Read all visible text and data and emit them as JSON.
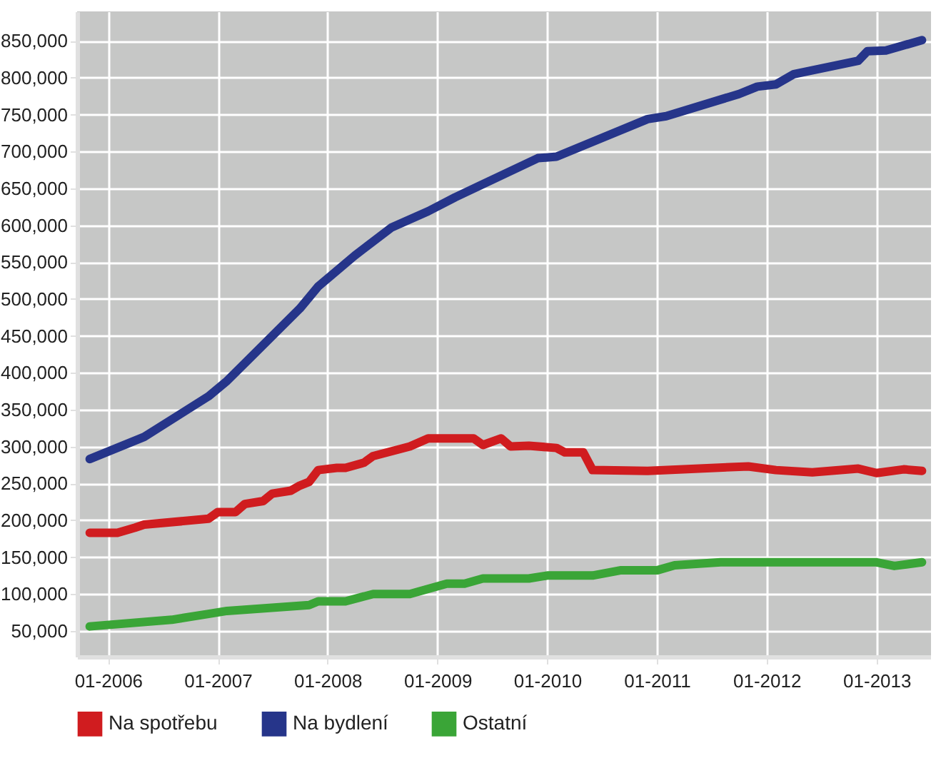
{
  "chart_data": {
    "type": "line",
    "xlim": [
      "2005-09-20",
      "2013-07-01"
    ],
    "xticks": [
      {
        "value": "2006-01",
        "label": "01-2006"
      },
      {
        "value": "2007-01",
        "label": "01-2007"
      },
      {
        "value": "2008-01",
        "label": "01-2008"
      },
      {
        "value": "2009-01",
        "label": "01-2009"
      },
      {
        "value": "2010-01",
        "label": "01-2010"
      },
      {
        "value": "2011-01",
        "label": "01-2011"
      },
      {
        "value": "2012-01",
        "label": "01-2012"
      },
      {
        "value": "2013-01",
        "label": "01-2013"
      }
    ],
    "ylim": [
      15000,
      890000
    ],
    "yticks": [
      {
        "value": 50000,
        "label": "50,000"
      },
      {
        "value": 100000,
        "label": "100,000"
      },
      {
        "value": 150000,
        "label": "150,000"
      },
      {
        "value": 200000,
        "label": "200,000"
      },
      {
        "value": 250000,
        "label": "250,000"
      },
      {
        "value": 300000,
        "label": "300,000"
      },
      {
        "value": 350000,
        "label": "350,000"
      },
      {
        "value": 400000,
        "label": "400,000"
      },
      {
        "value": 450000,
        "label": "450,000"
      },
      {
        "value": 500000,
        "label": "500,000"
      },
      {
        "value": 550000,
        "label": "550,000"
      },
      {
        "value": 600000,
        "label": "600,000"
      },
      {
        "value": 650000,
        "label": "650,000"
      },
      {
        "value": 700000,
        "label": "700,000"
      },
      {
        "value": 750000,
        "label": "750,000"
      },
      {
        "value": 800000,
        "label": "800,000"
      },
      {
        "value": 850000,
        "label": "850,000"
      }
    ],
    "grid": true,
    "legend": "bottom",
    "marker": "none",
    "line_style": "solid",
    "series": [
      {
        "name": "Na spotřebu",
        "color": "#d01c1f",
        "x": [
          "2005-11",
          "2006-02",
          "2006-04",
          "2006-05",
          "2006-12",
          "2007-01",
          "2007-03",
          "2007-04",
          "2007-06",
          "2007-07",
          "2007-09",
          "2007-10",
          "2007-11",
          "2007-12",
          "2008-02",
          "2008-03",
          "2008-05",
          "2008-06",
          "2008-10",
          "2008-12",
          "2009-05",
          "2009-06",
          "2009-08",
          "2009-09",
          "2009-11",
          "2010-02",
          "2010-03",
          "2010-05",
          "2010-06",
          "2010-12",
          "2011-11",
          "2012-02",
          "2012-06",
          "2012-11",
          "2013-01",
          "2013-04",
          "2013-06"
        ],
        "values": [
          183000,
          183000,
          190000,
          194000,
          202000,
          211000,
          211000,
          222000,
          226000,
          236000,
          240000,
          247000,
          252000,
          268000,
          271000,
          271000,
          278000,
          287000,
          300000,
          311000,
          311000,
          302000,
          311000,
          300000,
          301000,
          298000,
          292000,
          292000,
          268000,
          267000,
          273000,
          268000,
          265000,
          270000,
          264000,
          269000,
          267000
        ]
      },
      {
        "name": "Na bydlení",
        "color": "#26358a",
        "x": [
          "2005-11",
          "2006-05",
          "2006-12",
          "2007-02",
          "2007-10",
          "2007-12",
          "2008-04",
          "2008-08",
          "2008-12",
          "2009-03",
          "2009-12",
          "2010-02",
          "2010-12",
          "2011-02",
          "2011-10",
          "2011-12",
          "2012-02",
          "2012-04",
          "2012-11",
          "2012-12",
          "2013-02",
          "2013-06"
        ],
        "values": [
          283000,
          313000,
          368000,
          389000,
          487000,
          517000,
          559000,
          597000,
          619000,
          638000,
          691000,
          693000,
          744000,
          748000,
          778000,
          788000,
          791000,
          805000,
          823000,
          836000,
          837000,
          851000
        ]
      },
      {
        "name": "Ostatní",
        "color": "#3aa537",
        "x": [
          "2005-11",
          "2006-08",
          "2006-12",
          "2007-02",
          "2007-11",
          "2007-12",
          "2008-03",
          "2008-06",
          "2008-10",
          "2009-02",
          "2009-04",
          "2009-06",
          "2009-11",
          "2010-01",
          "2010-06",
          "2010-09",
          "2011-01",
          "2011-03",
          "2011-08",
          "2013-01",
          "2013-03",
          "2013-06"
        ],
        "values": [
          56000,
          65000,
          73000,
          77000,
          85000,
          90000,
          90000,
          100000,
          100000,
          114000,
          114000,
          121000,
          121000,
          125000,
          125000,
          132000,
          132000,
          139000,
          143000,
          143000,
          138000,
          143000
        ]
      }
    ]
  }
}
